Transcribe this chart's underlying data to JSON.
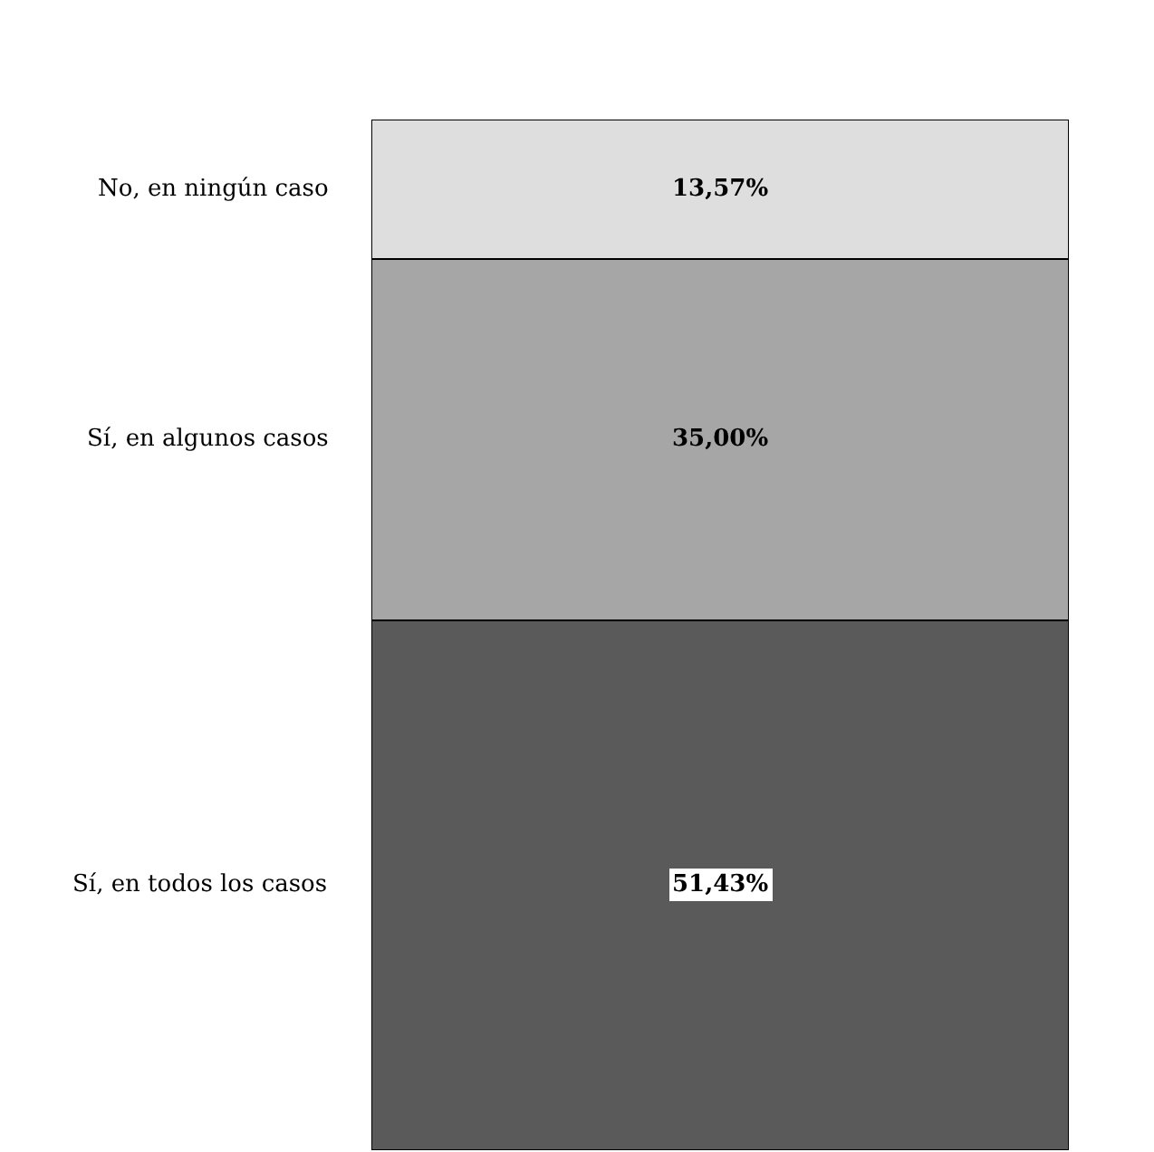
{
  "chart_data": {
    "type": "bar",
    "stacked": true,
    "categories": [
      null
    ],
    "legend": false,
    "series": [
      {
        "name": "Sí, en todos los casos",
        "color": "#5a5a5a",
        "values": [
          51.43
        ],
        "value_labels": [
          "51,43%"
        ]
      },
      {
        "name": "Sí, en algunos casos",
        "color": "#a6a6a6",
        "values": [
          35.0
        ],
        "value_labels": [
          "35,00%"
        ]
      },
      {
        "name": "No, en ningún caso",
        "color": "#dedede",
        "values": [
          13.57
        ],
        "value_labels": [
          "13,57%"
        ]
      }
    ]
  }
}
